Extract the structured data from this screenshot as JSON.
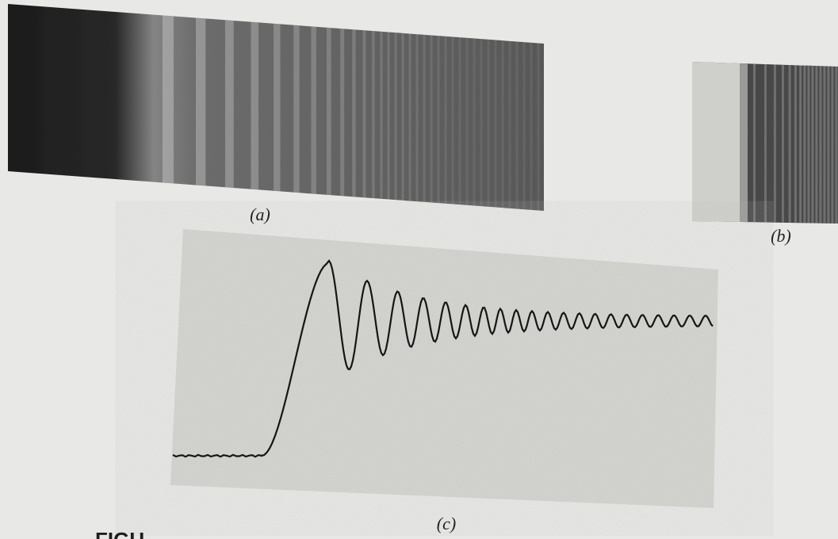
{
  "figure": {
    "panels": [
      {
        "label": "(a)"
      },
      {
        "label": "(b)"
      },
      {
        "label": "(c)"
      }
    ],
    "caption": "FIGU"
  }
}
